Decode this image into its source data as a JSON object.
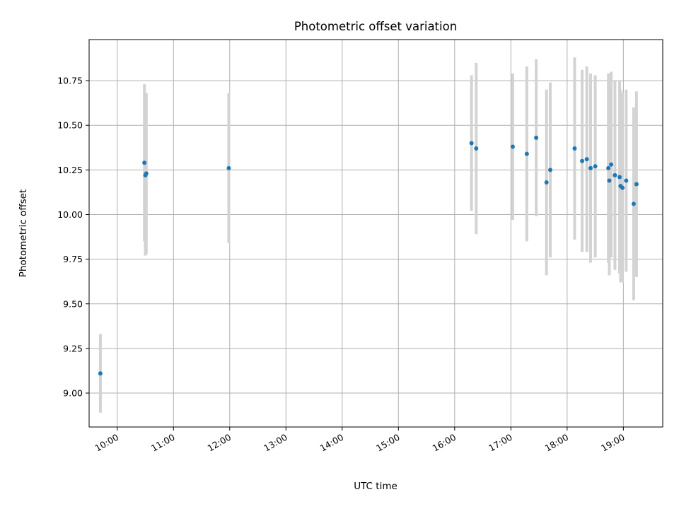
{
  "chart_data": {
    "type": "scatter",
    "title": "Photometric offset variation",
    "xlabel": "UTC time",
    "ylabel": "Photometric offset",
    "x_is_time": true,
    "xlim": [
      "09:30",
      "19:42"
    ],
    "ylim": [
      8.81,
      10.98
    ],
    "xticks": [
      "10:00",
      "11:00",
      "12:00",
      "13:00",
      "14:00",
      "15:00",
      "16:00",
      "17:00",
      "18:00",
      "19:00"
    ],
    "yticks": [
      "9.00",
      "9.25",
      "9.50",
      "9.75",
      "10.00",
      "10.25",
      "10.50",
      "10.75"
    ],
    "grid": true,
    "point_color": "#1f77b4",
    "errorbar_color": "#d3d3d3",
    "points": [
      {
        "time": "09:42",
        "y": 9.11,
        "err": 0.22
      },
      {
        "time": "10:29",
        "y": 10.29,
        "err": 0.44
      },
      {
        "time": "10:30",
        "y": 10.22,
        "err": 0.45
      },
      {
        "time": "10:31",
        "y": 10.23,
        "err": 0.45
      },
      {
        "time": "11:59",
        "y": 10.26,
        "err": 0.42
      },
      {
        "time": "16:18",
        "y": 10.4,
        "err": 0.38
      },
      {
        "time": "16:23",
        "y": 10.37,
        "err": 0.48
      },
      {
        "time": "17:02",
        "y": 10.38,
        "err": 0.41
      },
      {
        "time": "17:17",
        "y": 10.34,
        "err": 0.49
      },
      {
        "time": "17:27",
        "y": 10.43,
        "err": 0.44
      },
      {
        "time": "17:38",
        "y": 10.18,
        "err": 0.52
      },
      {
        "time": "17:42",
        "y": 10.25,
        "err": 0.49
      },
      {
        "time": "18:08",
        "y": 10.37,
        "err": 0.51
      },
      {
        "time": "18:16",
        "y": 10.3,
        "err": 0.51
      },
      {
        "time": "18:21",
        "y": 10.31,
        "err": 0.52
      },
      {
        "time": "18:25",
        "y": 10.26,
        "err": 0.53
      },
      {
        "time": "18:30",
        "y": 10.27,
        "err": 0.51
      },
      {
        "time": "18:44",
        "y": 10.26,
        "err": 0.53
      },
      {
        "time": "18:45",
        "y": 10.19,
        "err": 0.53
      },
      {
        "time": "18:47",
        "y": 10.28,
        "err": 0.52
      },
      {
        "time": "18:51",
        "y": 10.22,
        "err": 0.53
      },
      {
        "time": "18:56",
        "y": 10.21,
        "err": 0.54
      },
      {
        "time": "18:57",
        "y": 10.16,
        "err": 0.54
      },
      {
        "time": "18:59",
        "y": 10.15,
        "err": 0.53
      },
      {
        "time": "19:03",
        "y": 10.19,
        "err": 0.51
      },
      {
        "time": "19:11",
        "y": 10.06,
        "err": 0.54
      },
      {
        "time": "19:14",
        "y": 10.17,
        "err": 0.52
      }
    ]
  }
}
